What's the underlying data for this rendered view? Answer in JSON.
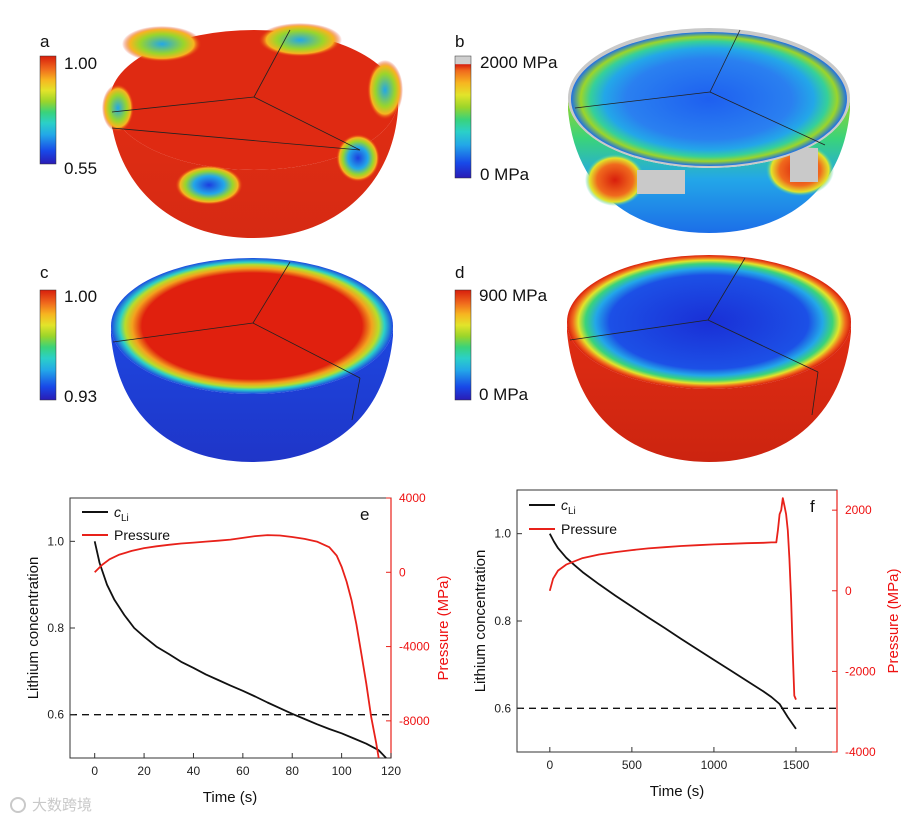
{
  "colors": {
    "jet": [
      "#2a1bb5",
      "#1848e8",
      "#23a7e8",
      "#2bd0c8",
      "#3ad37a",
      "#55cf32",
      "#9bd52a",
      "#e2e42a",
      "#f7b520",
      "#f06a1d",
      "#e02d13",
      "#d81e0c"
    ],
    "black": "#111111",
    "red": "#e8211a",
    "surface_blue": "#1f3fd8",
    "surface_red": "#dd2a12",
    "gray": "#c8c8c8"
  },
  "panels": {
    "a": {
      "letter": "a",
      "cb_max": "1.00",
      "cb_min": "0.55"
    },
    "b": {
      "letter": "b",
      "cb_max": "2000 MPa",
      "cb_min": "0 MPa"
    },
    "c": {
      "letter": "c",
      "cb_max": "1.00",
      "cb_min": "0.93"
    },
    "d": {
      "letter": "d",
      "cb_max": "900 MPa",
      "cb_min": "0 MPa"
    }
  },
  "chart_data": [
    {
      "panel": "e",
      "type": "line",
      "xlabel": "Time (s)",
      "ylabel": "Lithium concentration",
      "y2label": "Pressure (MPa)",
      "xlim": [
        -10,
        120
      ],
      "ylim": [
        0.5,
        1.1
      ],
      "y2lim": [
        -10000,
        4000
      ],
      "xticks": [
        0,
        20,
        40,
        60,
        80,
        100,
        120
      ],
      "yticks": [
        0.6,
        0.8,
        1.0
      ],
      "ytick_labels": [
        "0.6",
        "0.8",
        "1.0"
      ],
      "y2ticks": [
        -8000,
        -4000,
        0,
        4000
      ],
      "legend": [
        "c",
        "Pressure"
      ],
      "legend_subscript": "Li",
      "reference_line": 0.6,
      "series": [
        {
          "name": "c_Li",
          "axis": "left",
          "color": "black",
          "x": [
            0,
            2,
            5,
            8,
            12,
            16,
            20,
            25,
            30,
            35,
            40,
            45,
            50,
            55,
            60,
            65,
            70,
            75,
            80,
            85,
            90,
            95,
            100,
            105,
            110,
            115,
            118
          ],
          "y": [
            1.0,
            0.95,
            0.9,
            0.865,
            0.83,
            0.8,
            0.78,
            0.757,
            0.74,
            0.722,
            0.708,
            0.693,
            0.68,
            0.667,
            0.655,
            0.642,
            0.628,
            0.615,
            0.602,
            0.59,
            0.578,
            0.567,
            0.557,
            0.545,
            0.533,
            0.518,
            0.5
          ]
        },
        {
          "name": "Pressure",
          "axis": "right",
          "color": "red",
          "x": [
            0,
            3,
            6,
            10,
            15,
            20,
            25,
            30,
            35,
            40,
            45,
            50,
            55,
            60,
            65,
            70,
            75,
            80,
            85,
            90,
            95,
            98,
            100,
            102,
            104,
            106,
            108,
            110,
            112,
            114,
            115
          ],
          "y": [
            0,
            400,
            700,
            950,
            1150,
            1300,
            1400,
            1480,
            1550,
            1600,
            1650,
            1700,
            1760,
            1850,
            1950,
            2000,
            1980,
            1900,
            1800,
            1650,
            1350,
            900,
            300,
            -500,
            -1500,
            -2800,
            -4400,
            -6000,
            -7800,
            -9200,
            -10000
          ]
        }
      ]
    },
    {
      "panel": "f",
      "type": "line",
      "xlabel": "Time (s)",
      "ylabel": "Lithium concentration",
      "y2label": "Pressure (MPa)",
      "xlim": [
        -200,
        1750
      ],
      "ylim": [
        0.5,
        1.1
      ],
      "y2lim": [
        -4000,
        2500
      ],
      "xticks": [
        0,
        500,
        1000,
        1500
      ],
      "yticks": [
        0.6,
        0.8,
        1.0
      ],
      "ytick_labels": [
        "0.6",
        "0.8",
        "1.0"
      ],
      "y2ticks": [
        -4000,
        -2000,
        0,
        2000
      ],
      "legend": [
        "c",
        "Pressure"
      ],
      "legend_subscript": "Li",
      "reference_line": 0.6,
      "series": [
        {
          "name": "c_Li",
          "axis": "left",
          "color": "black",
          "x": [
            0,
            25,
            50,
            100,
            150,
            200,
            300,
            400,
            500,
            600,
            700,
            800,
            900,
            1000,
            1100,
            1200,
            1300,
            1350,
            1400,
            1450,
            1500
          ],
          "y": [
            1.0,
            0.982,
            0.967,
            0.945,
            0.928,
            0.912,
            0.884,
            0.858,
            0.833,
            0.808,
            0.784,
            0.759,
            0.735,
            0.711,
            0.687,
            0.663,
            0.639,
            0.626,
            0.61,
            0.58,
            0.553
          ]
        },
        {
          "name": "Pressure",
          "axis": "right",
          "color": "red",
          "x": [
            0,
            20,
            50,
            100,
            200,
            300,
            400,
            500,
            600,
            700,
            800,
            900,
            1000,
            1100,
            1200,
            1300,
            1350,
            1380,
            1390,
            1400,
            1410,
            1420,
            1430,
            1440,
            1450,
            1460,
            1470,
            1480,
            1490,
            1500
          ],
          "y": [
            0,
            300,
            500,
            650,
            810,
            900,
            960,
            1010,
            1050,
            1080,
            1110,
            1130,
            1150,
            1165,
            1180,
            1190,
            1200,
            1200,
            1500,
            1900,
            2000,
            2300,
            2100,
            1900,
            1500,
            800,
            -200,
            -1500,
            -2600,
            -2700
          ]
        }
      ]
    }
  ],
  "watermark": "大数跨境"
}
